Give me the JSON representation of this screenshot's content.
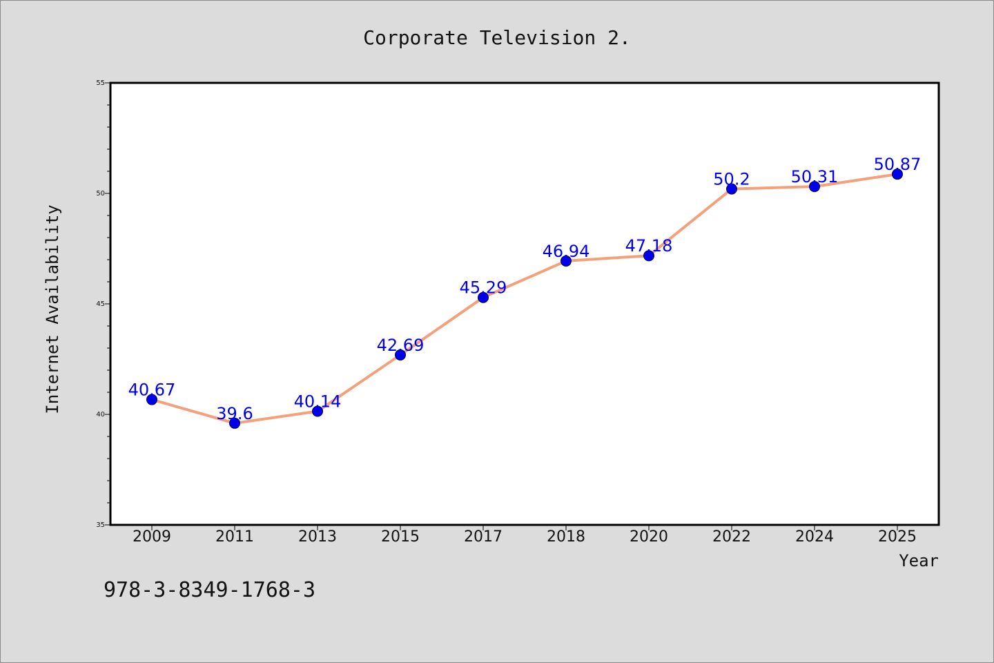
{
  "chart_data": {
    "type": "line",
    "title": "Corporate Television 2.",
    "xlabel": "Year",
    "ylabel": "Internet Availability",
    "categories": [
      "2009",
      "2011",
      "2013",
      "2015",
      "2017",
      "2018",
      "2020",
      "2022",
      "2024",
      "2025"
    ],
    "series": [
      {
        "values": [
          40.67,
          39.6,
          40.14,
          42.69,
          45.29,
          46.94,
          47.18,
          50.2,
          50.31,
          50.87
        ],
        "data_labels": [
          "40.67",
          "39.6",
          "40.14",
          "42.69",
          "45.29",
          "46.94",
          "47.18",
          "50.2",
          "50.31",
          "50.87"
        ],
        "line_color": "#f4a07a",
        "marker_color": "#0000ee",
        "label_color": "#0000ee"
      }
    ],
    "ylim": [
      35,
      55
    ],
    "yticks": [
      "35",
      "40",
      "45",
      "50",
      "55"
    ],
    "grid": false,
    "legend": "none"
  },
  "footer": {
    "isbn": "978-3-8349-1768-3"
  },
  "colors": {
    "background": "#dcdcdc",
    "plot_area": "#ffffff",
    "axis": "#000000"
  }
}
